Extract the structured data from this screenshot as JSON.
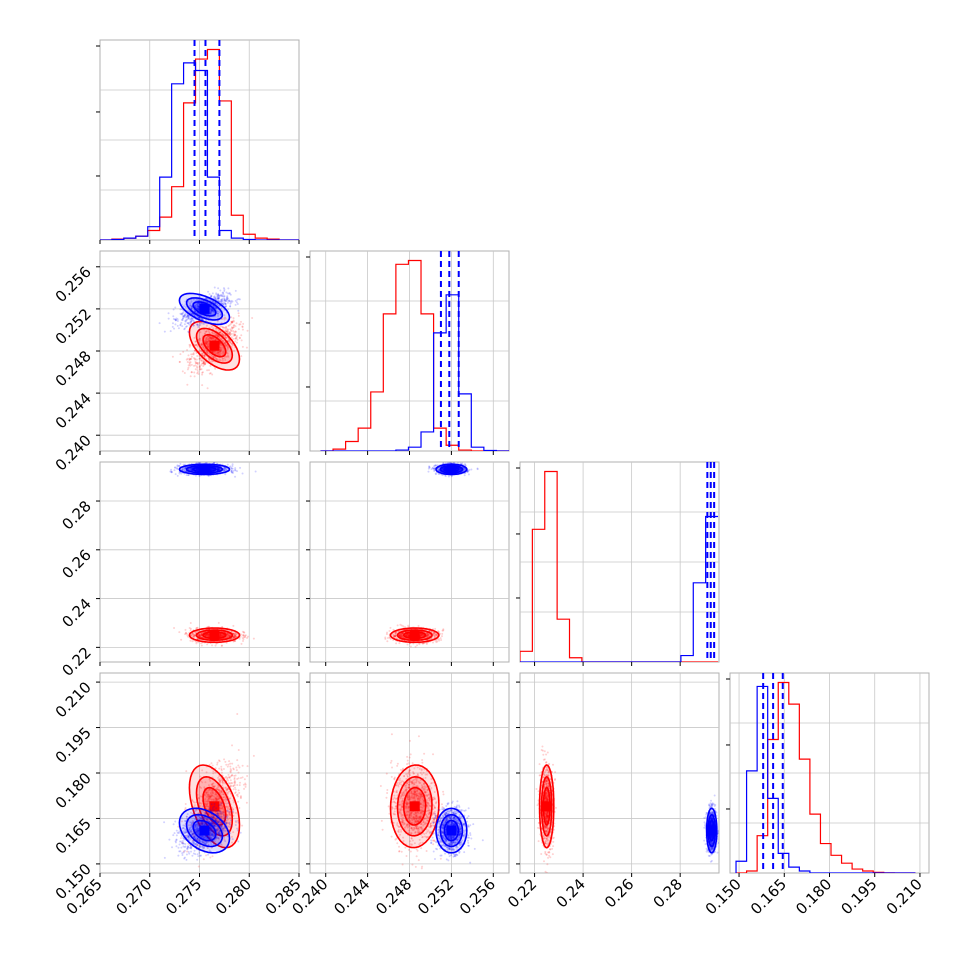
{
  "chart_data": {
    "type": "corner",
    "title": "",
    "parameters": [
      {
        "range": [
          0.265,
          0.285
        ],
        "ticks": [
          0.265,
          0.27,
          0.275,
          0.28,
          0.285
        ],
        "tick_labels": [
          "0.265",
          "0.270",
          "0.275",
          "0.280",
          "0.285"
        ]
      },
      {
        "range": [
          0.2385,
          0.2575
        ],
        "ticks": [
          0.24,
          0.244,
          0.248,
          0.252,
          0.256
        ],
        "tick_labels": [
          "0.240",
          "0.244",
          "0.248",
          "0.252",
          "0.256"
        ]
      },
      {
        "range": [
          0.214,
          0.296
        ],
        "ticks": [
          0.22,
          0.24,
          0.26,
          0.28
        ],
        "tick_labels": [
          "0.22",
          "0.24",
          "0.26",
          "0.28"
        ]
      },
      {
        "range": [
          0.147,
          0.213
        ],
        "ticks": [
          0.15,
          0.165,
          0.18,
          0.195,
          0.21
        ],
        "tick_labels": [
          "0.150",
          "0.165",
          "0.180",
          "0.195",
          "0.210"
        ]
      }
    ],
    "grid": true,
    "series": [
      {
        "color": "#ff0000",
        "means": [
          0.2765,
          0.2485,
          0.225,
          0.169
        ],
        "sigmas": [
          0.0012,
          0.0011,
          0.0014,
          0.0065
        ],
        "correlations": {
          "1-0": 0.55,
          "2-0": 0.0,
          "2-1": 0.0,
          "3-0": 0.45,
          "3-1": -0.05,
          "3-2": 0.0
        }
      },
      {
        "color": "#0000ff",
        "means": [
          0.2755,
          0.252,
          0.293,
          0.161
        ],
        "sigmas": [
          0.0012,
          0.0007,
          0.001,
          0.0035
        ],
        "correlations": {
          "1-0": 0.55,
          "2-0": 0.0,
          "2-1": 0.0,
          "3-0": 0.35,
          "3-1": 0.0,
          "3-2": 0.0
        },
        "quantile_lines": [
          [
            0.2745,
            0.2756,
            0.277
          ],
          [
            0.251,
            0.2518,
            0.2527
          ],
          [
            0.2912,
            0.2926,
            0.294
          ],
          [
            0.158,
            0.1613,
            0.1645
          ]
        ]
      }
    ],
    "histograms": [
      {
        "bins": [
          0.265,
          0.2662,
          0.2674,
          0.2686,
          0.2698,
          0.271,
          0.2722,
          0.2734,
          0.2746,
          0.2758,
          0.277,
          0.2782,
          0.2794,
          0.2806,
          0.2818,
          0.283,
          0.285
        ],
        "red": [
          0,
          0.005,
          0.01,
          0.02,
          0.05,
          0.12,
          0.28,
          0.72,
          0.95,
          1.0,
          0.73,
          0.13,
          0.03,
          0.01,
          0.005,
          0
        ],
        "blue": [
          0,
          0.003,
          0.01,
          0.02,
          0.07,
          0.33,
          0.82,
          0.93,
          0.89,
          0.33,
          0.05,
          0.01,
          0.003,
          0,
          0,
          0
        ]
      },
      {
        "bins": [
          0.2395,
          0.2407,
          0.2419,
          0.2431,
          0.2443,
          0.2455,
          0.2467,
          0.2479,
          0.2491,
          0.2503,
          0.2515,
          0.2527,
          0.2539,
          0.2551,
          0.2563,
          0.2575
        ],
        "red": [
          0,
          0.01,
          0.05,
          0.12,
          0.31,
          0.72,
          0.98,
          1.0,
          0.72,
          0.12,
          0.03,
          0.005,
          0,
          0,
          0
        ],
        "blue": [
          0,
          0,
          0,
          0,
          0,
          0,
          0.005,
          0.02,
          0.1,
          0.62,
          0.82,
          0.3,
          0.02,
          0.003,
          0
        ]
      },
      {
        "bins": [
          0.214,
          0.2191,
          0.2242,
          0.2293,
          0.2344,
          0.2395,
          0.2446,
          0.2497,
          0.2548,
          0.2599,
          0.265,
          0.2701,
          0.2752,
          0.2803,
          0.2854,
          0.2905,
          0.2956
        ],
        "red": [
          0.05,
          0.62,
          0.89,
          0.2,
          0.02,
          0,
          0,
          0,
          0,
          0,
          0,
          0,
          0,
          0,
          0,
          0
        ],
        "blue": [
          0,
          0,
          0,
          0,
          0,
          0,
          0,
          0,
          0,
          0,
          0,
          0,
          0,
          0.03,
          0.37,
          0.68
        ]
      },
      {
        "bins": [
          0.149,
          0.1525,
          0.156,
          0.1595,
          0.163,
          0.1665,
          0.17,
          0.1735,
          0.177,
          0.1805,
          0.184,
          0.1875,
          0.191,
          0.1945,
          0.198,
          0.2015,
          0.205,
          0.2085
        ],
        "red": [
          0,
          0.01,
          0.19,
          0.68,
          0.97,
          0.86,
          0.58,
          0.3,
          0.15,
          0.09,
          0.05,
          0.02,
          0.01,
          0.003,
          0.001,
          0,
          0
        ],
        "blue": [
          0.06,
          0.52,
          0.95,
          0.38,
          0.1,
          0.03,
          0.01,
          0,
          0,
          0,
          0,
          0,
          0,
          0,
          0,
          0,
          0
        ]
      }
    ]
  }
}
